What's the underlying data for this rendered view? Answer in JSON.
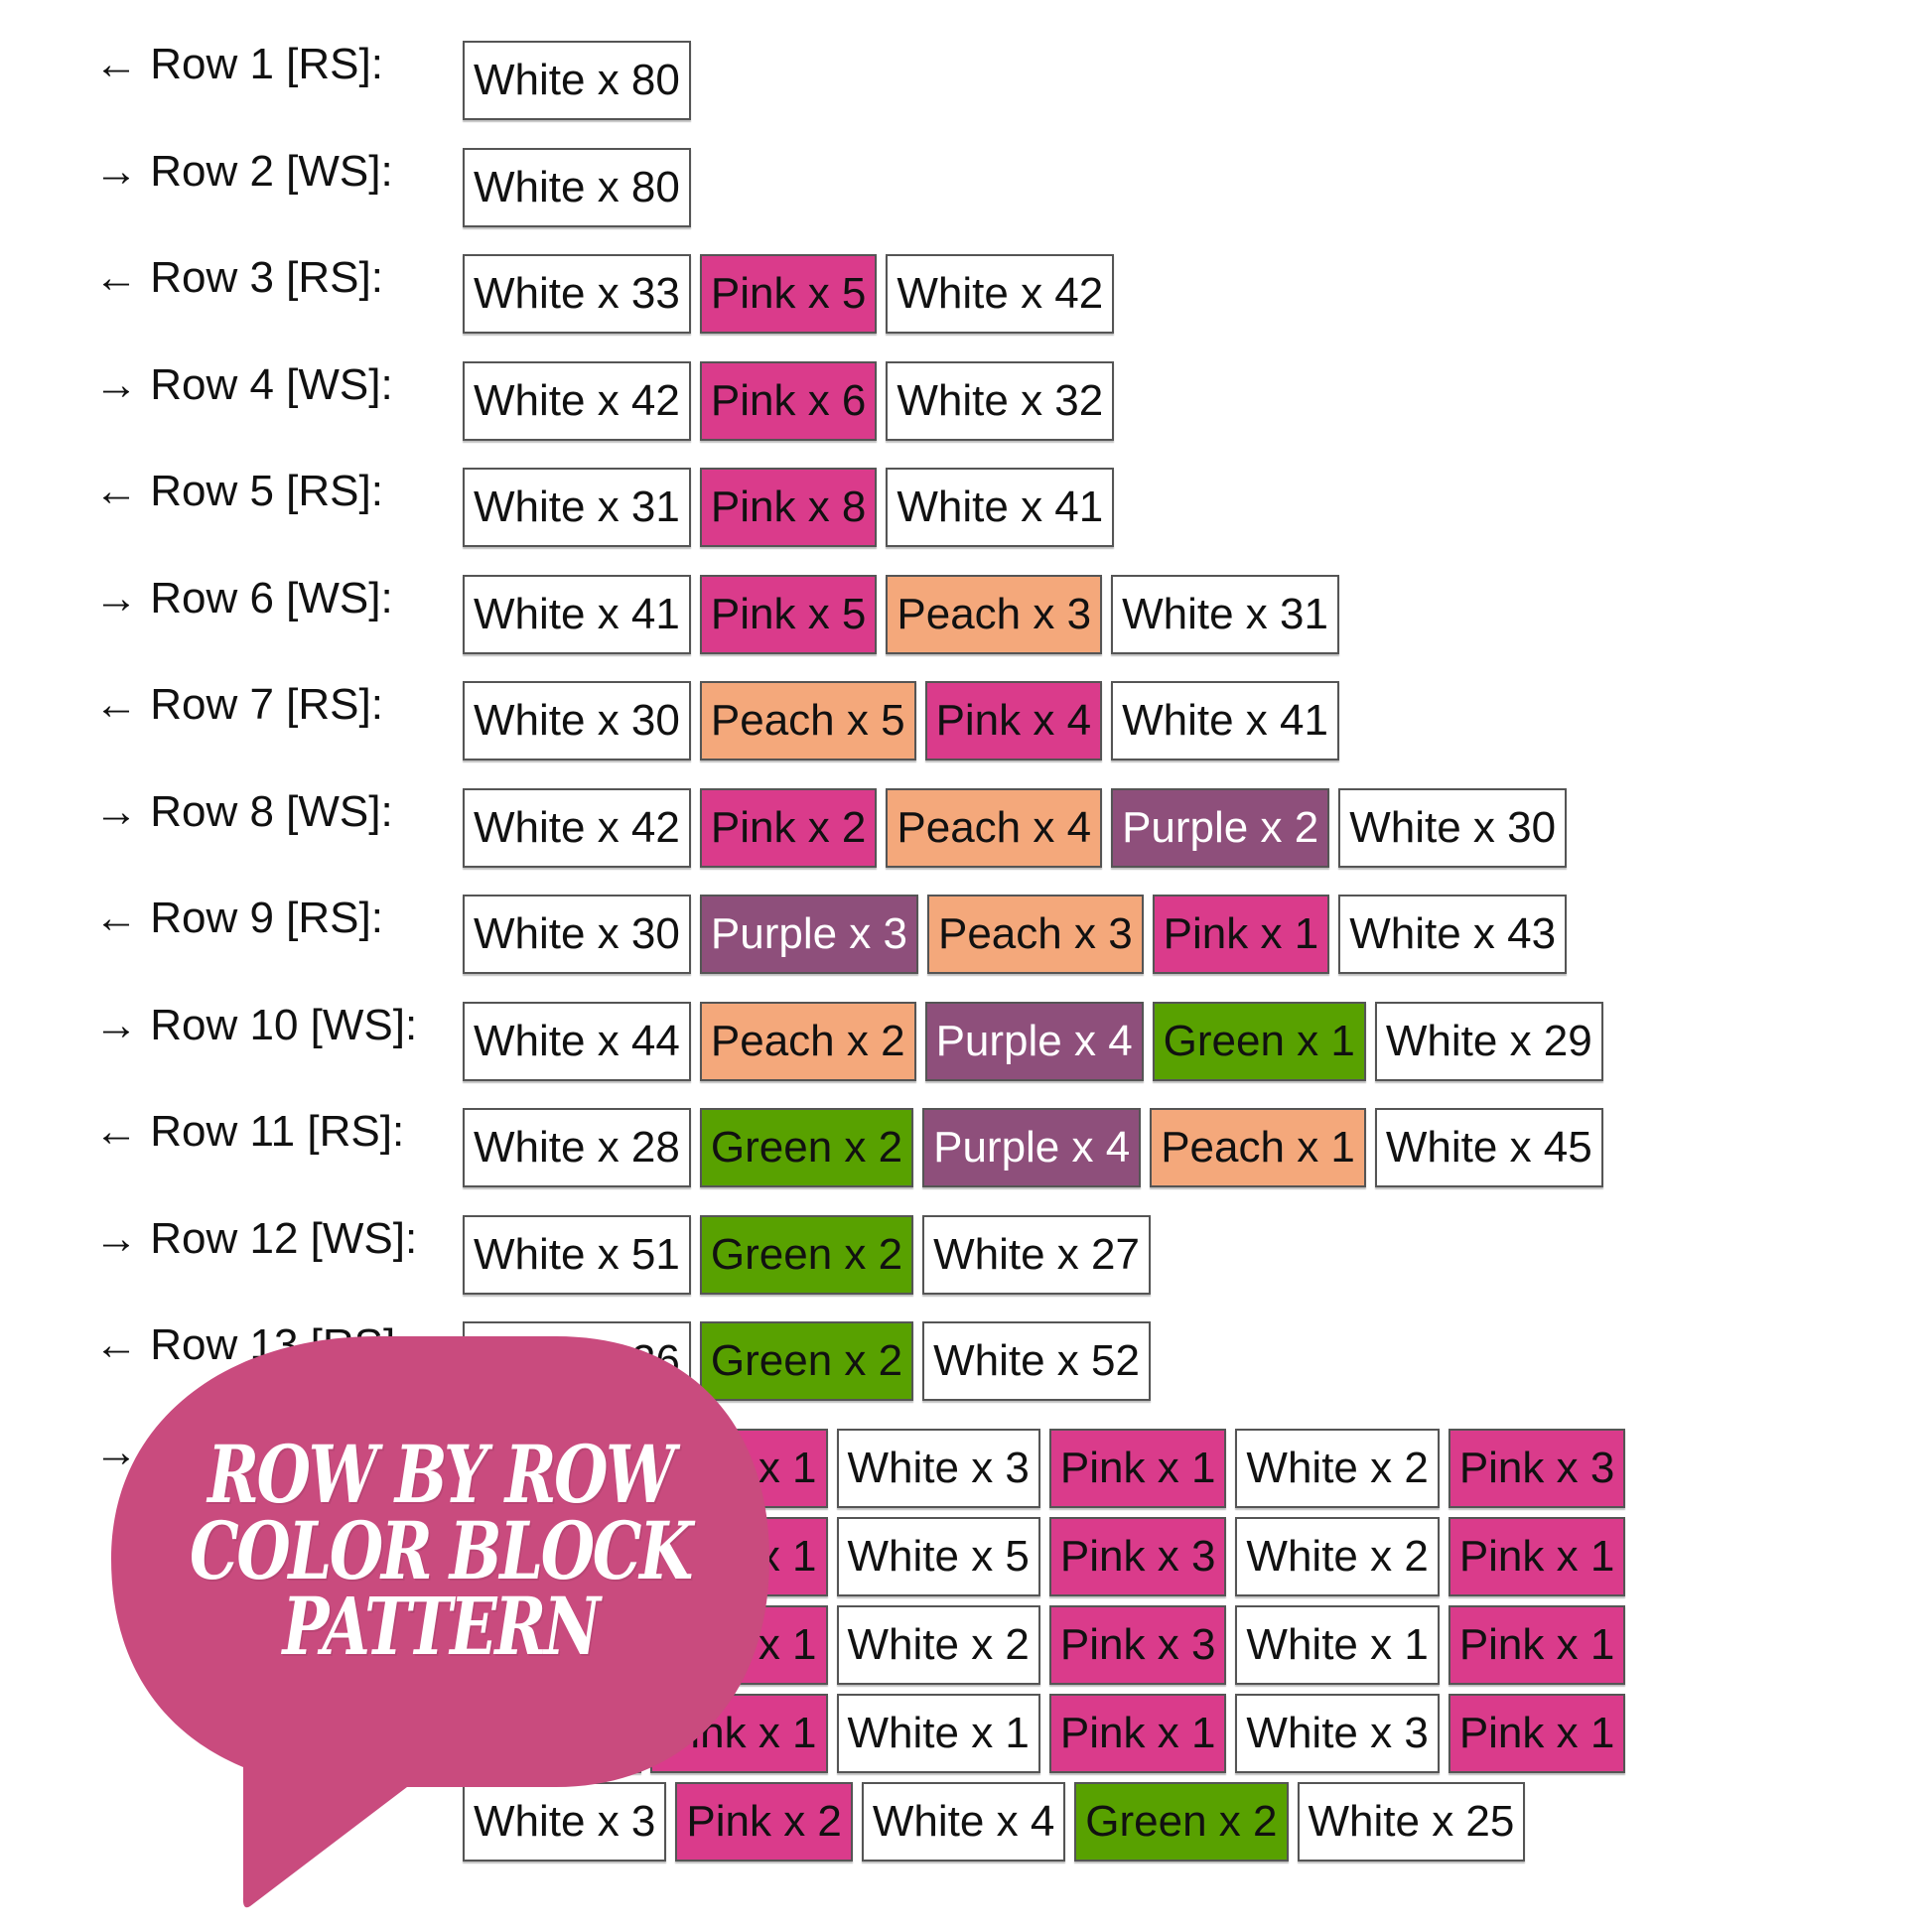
{
  "colors": {
    "White": "#ffffff",
    "Pink": "#da3b8b",
    "Peach": "#f4a87b",
    "Purple": "#8e4f7b",
    "Green": "#58a100",
    "bubble": "#c94b7e"
  },
  "rows": [
    {
      "label": "← Row 1 [RS]:",
      "cells": [
        {
          "color": "White",
          "text": "White x 80"
        }
      ]
    },
    {
      "label": "→ Row 2 [WS]:",
      "cells": [
        {
          "color": "White",
          "text": "White x 80"
        }
      ]
    },
    {
      "label": "← Row 3 [RS]:",
      "cells": [
        {
          "color": "White",
          "text": "White x 33"
        },
        {
          "color": "Pink",
          "text": "Pink x 5"
        },
        {
          "color": "White",
          "text": "White x 42"
        }
      ]
    },
    {
      "label": "→ Row 4 [WS]:",
      "cells": [
        {
          "color": "White",
          "text": "White x 42"
        },
        {
          "color": "Pink",
          "text": "Pink x 6"
        },
        {
          "color": "White",
          "text": "White x 32"
        }
      ]
    },
    {
      "label": "← Row 5 [RS]:",
      "cells": [
        {
          "color": "White",
          "text": "White x 31"
        },
        {
          "color": "Pink",
          "text": "Pink x 8"
        },
        {
          "color": "White",
          "text": "White x 41"
        }
      ]
    },
    {
      "label": "→ Row 6 [WS]:",
      "cells": [
        {
          "color": "White",
          "text": "White x 41"
        },
        {
          "color": "Pink",
          "text": "Pink x 5"
        },
        {
          "color": "Peach",
          "text": "Peach x 3"
        },
        {
          "color": "White",
          "text": "White x 31"
        }
      ]
    },
    {
      "label": "← Row 7 [RS]:",
      "cells": [
        {
          "color": "White",
          "text": "White x 30"
        },
        {
          "color": "Peach",
          "text": "Peach x 5"
        },
        {
          "color": "Pink",
          "text": "Pink x 4"
        },
        {
          "color": "White",
          "text": "White x 41"
        }
      ]
    },
    {
      "label": "→ Row 8 [WS]:",
      "cells": [
        {
          "color": "White",
          "text": "White x 42"
        },
        {
          "color": "Pink",
          "text": "Pink x 2"
        },
        {
          "color": "Peach",
          "text": "Peach x 4"
        },
        {
          "color": "Purple",
          "text": "Purple x 2"
        },
        {
          "color": "White",
          "text": "White x 30"
        }
      ]
    },
    {
      "label": "← Row 9 [RS]:",
      "cells": [
        {
          "color": "White",
          "text": "White x 30"
        },
        {
          "color": "Purple",
          "text": "Purple x 3"
        },
        {
          "color": "Peach",
          "text": "Peach x 3"
        },
        {
          "color": "Pink",
          "text": "Pink x 1"
        },
        {
          "color": "White",
          "text": "White x 43"
        }
      ]
    },
    {
      "label": "→ Row 10 [WS]:",
      "cells": [
        {
          "color": "White",
          "text": "White x 44"
        },
        {
          "color": "Peach",
          "text": "Peach x 2"
        },
        {
          "color": "Purple",
          "text": "Purple x 4"
        },
        {
          "color": "Green",
          "text": "Green x 1"
        },
        {
          "color": "White",
          "text": "White x 29"
        }
      ]
    },
    {
      "label": "← Row 11 [RS]:",
      "cells": [
        {
          "color": "White",
          "text": "White x 28"
        },
        {
          "color": "Green",
          "text": "Green x 2"
        },
        {
          "color": "Purple",
          "text": "Purple x 4"
        },
        {
          "color": "Peach",
          "text": "Peach x 1"
        },
        {
          "color": "White",
          "text": "White x 45"
        }
      ]
    },
    {
      "label": "→ Row 12 [WS]:",
      "cells": [
        {
          "color": "White",
          "text": "White x 51"
        },
        {
          "color": "Green",
          "text": "Green x 2"
        },
        {
          "color": "White",
          "text": "White x 27"
        }
      ]
    },
    {
      "label": "← Row 13 [RS]:",
      "cells": [
        {
          "color": "White",
          "text": "White x 26"
        },
        {
          "color": "Green",
          "text": "Green x 2"
        },
        {
          "color": "White",
          "text": "White x 52"
        }
      ]
    },
    {
      "label": "→",
      "cells": [
        {
          "color": "White",
          "text": ""
        },
        {
          "color": "Pink",
          "text": "Pink x 1"
        },
        {
          "color": "White",
          "text": "White x 3"
        },
        {
          "color": "Pink",
          "text": "Pink x 1"
        },
        {
          "color": "White",
          "text": "White x 2"
        },
        {
          "color": "Pink",
          "text": "Pink x 3"
        }
      ]
    },
    {
      "label": "",
      "cells": [
        {
          "color": "White",
          "text": ""
        },
        {
          "color": "Pink",
          "text": "Pink x 1"
        },
        {
          "color": "White",
          "text": "White x 5"
        },
        {
          "color": "Pink",
          "text": "Pink x 3"
        },
        {
          "color": "White",
          "text": "White x 2"
        },
        {
          "color": "Pink",
          "text": "Pink x 1"
        }
      ]
    },
    {
      "label": "",
      "cells": [
        {
          "color": "White",
          "text": ""
        },
        {
          "color": "Pink",
          "text": "Pink x 1"
        },
        {
          "color": "White",
          "text": "White x 2"
        },
        {
          "color": "Pink",
          "text": "Pink x 3"
        },
        {
          "color": "White",
          "text": "White x 1"
        },
        {
          "color": "Pink",
          "text": "Pink x 1"
        }
      ]
    },
    {
      "label": "",
      "cells": [
        {
          "color": "White",
          "text": ""
        },
        {
          "color": "Pink",
          "text": "Pink x 1"
        },
        {
          "color": "White",
          "text": "White x 1"
        },
        {
          "color": "Pink",
          "text": "Pink x 1"
        },
        {
          "color": "White",
          "text": "White x 3"
        },
        {
          "color": "Pink",
          "text": "Pink x 1"
        }
      ]
    },
    {
      "label": "",
      "cells": [
        {
          "color": "White",
          "text": "White x 3"
        },
        {
          "color": "Pink",
          "text": "Pink x 2"
        },
        {
          "color": "White",
          "text": "White x 4"
        },
        {
          "color": "Green",
          "text": "Green x 2"
        },
        {
          "color": "White",
          "text": "White x 25"
        }
      ]
    }
  ],
  "banner": {
    "lines": [
      "ROW BY ROW",
      "COLOR  BLOCK",
      "PATTERN"
    ]
  }
}
